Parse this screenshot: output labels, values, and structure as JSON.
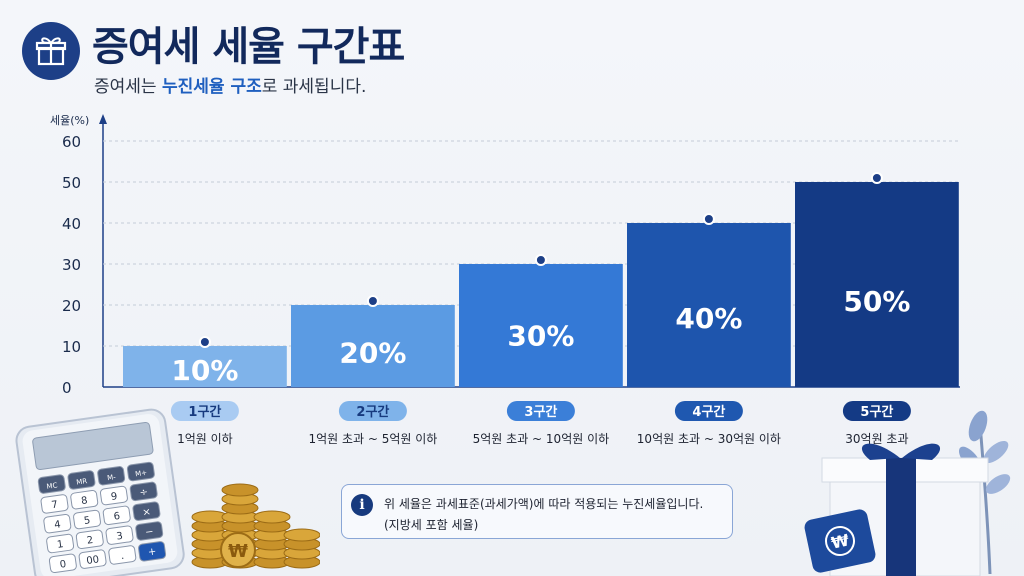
{
  "header": {
    "title": "증여세 세율 구간표",
    "subtitle_pre": "증여세는 ",
    "subtitle_highlight": "누진세율 구조",
    "subtitle_post": "로 과세됩니다.",
    "icon": "gift-icon"
  },
  "chart_data": {
    "type": "bar",
    "ylabel": "세율(%)",
    "ylim": [
      0,
      60
    ],
    "yticks": [
      0,
      10,
      20,
      30,
      40,
      50,
      60
    ],
    "grid": true,
    "categories": [
      "1구간",
      "2구간",
      "3구간",
      "4구간",
      "5구간"
    ],
    "ranges": [
      "1억원 이하",
      "1억원 초과 ~ 5억원 이하",
      "5억원 초과 ~ 10억원 이하",
      "10억원 초과 ~ 30억원 이하",
      "30억원 초과"
    ],
    "values": [
      10,
      20,
      30,
      40,
      50
    ],
    "value_labels": [
      "10%",
      "20%",
      "30%",
      "40%",
      "50%"
    ],
    "colors": [
      "#7fb3ea",
      "#5b9be3",
      "#3479d6",
      "#1e55ad",
      "#143a85"
    ],
    "badge_colors": [
      "#a9cbf2",
      "#7fb3ea",
      "#3b7fd8",
      "#1f58b0",
      "#143a85"
    ],
    "marker_color": "#1d3f87"
  },
  "note": {
    "icon": "info-icon",
    "line1": "위 세율은 과세표준(과세가액)에 따라 적용되는 누진세율입니다.",
    "line2": "(지방세 포함 세율)"
  },
  "decor": {
    "calculator_keys": [
      "MC",
      "MR",
      "M-",
      "M+",
      "7",
      "8",
      "9",
      "÷",
      "4",
      "5",
      "6",
      "×",
      "1",
      "2",
      "3",
      "−",
      "0",
      "00",
      ".",
      "+"
    ],
    "coin_symbol": "₩"
  }
}
